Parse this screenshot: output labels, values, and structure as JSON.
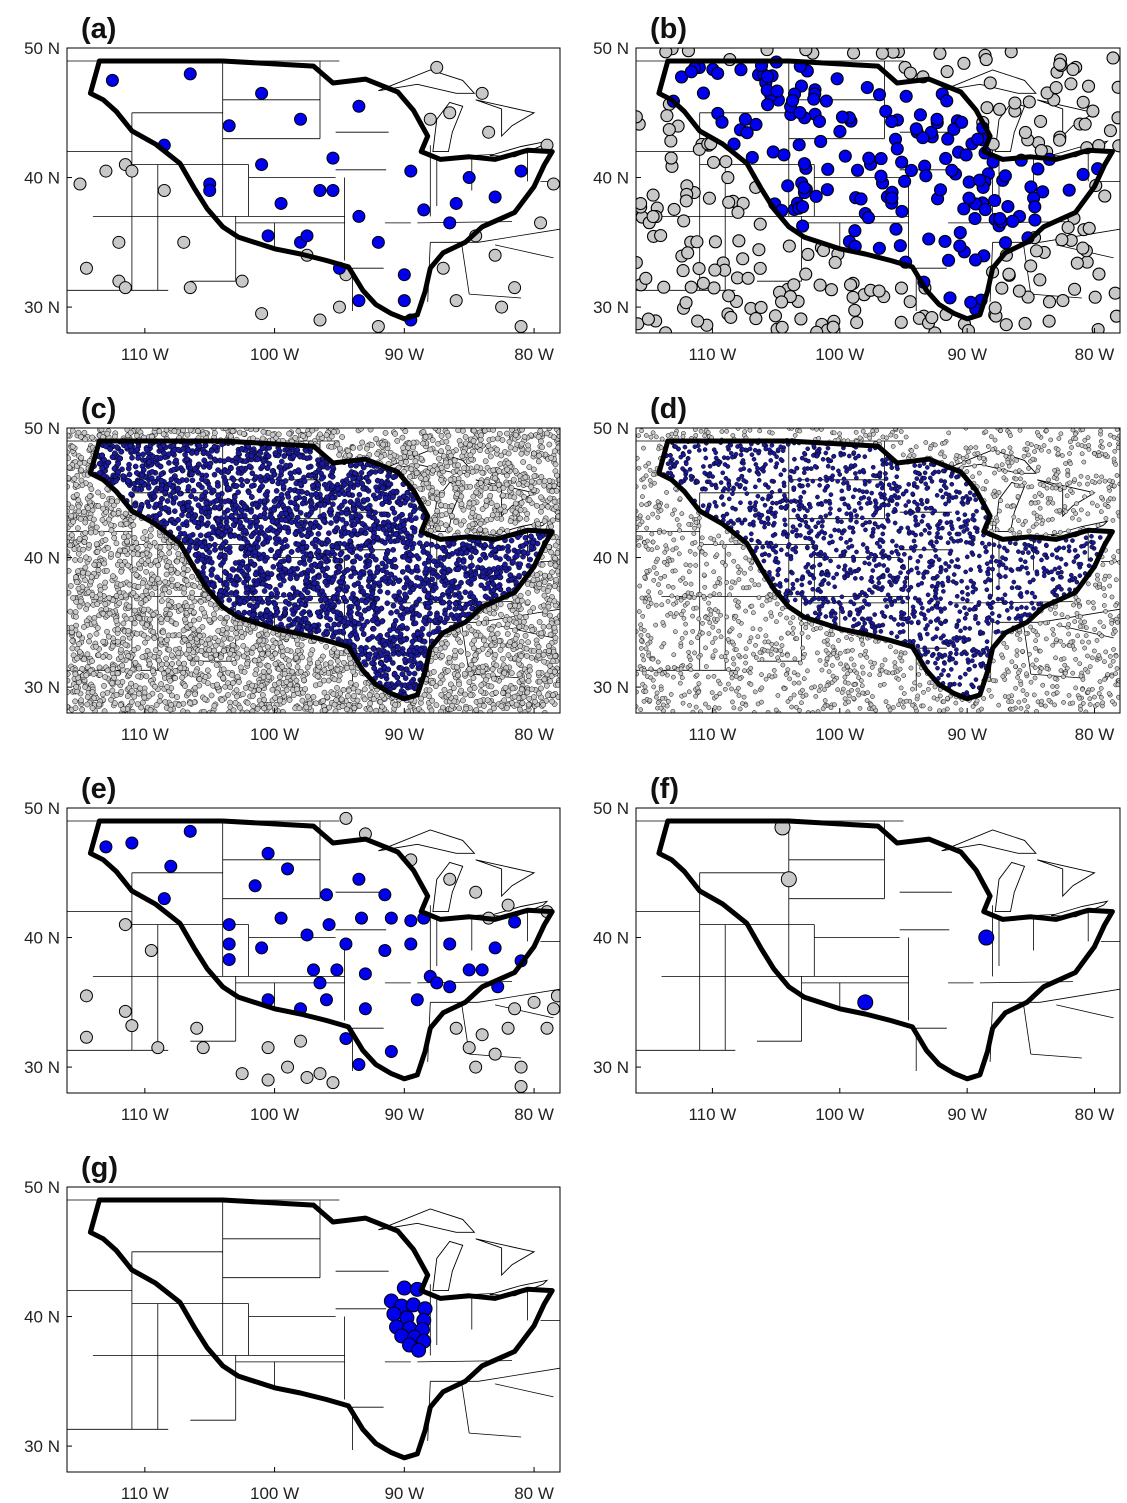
{
  "xlim": [
    -116,
    -78
  ],
  "ylim": [
    28,
    50
  ],
  "xticks": [
    {
      "value": -110,
      "label": "110 W"
    },
    {
      "value": -100,
      "label": "100 W"
    },
    {
      "value": -90,
      "label": "90 W"
    },
    {
      "value": -80,
      "label": "80 W"
    }
  ],
  "yticks": [
    {
      "value": 30,
      "label": "30 N"
    },
    {
      "value": 40,
      "label": "40 N"
    },
    {
      "value": 50,
      "label": "50 N"
    }
  ],
  "panels": [
    {
      "label": "(a)",
      "blue": [
        [
          -112.5,
          47.5
        ],
        [
          -106.5,
          48
        ],
        [
          -108.5,
          42.5
        ],
        [
          -105,
          39.5
        ],
        [
          -105,
          39
        ],
        [
          -103.5,
          44
        ],
        [
          -101,
          46.5
        ],
        [
          -101,
          41
        ],
        [
          -99.5,
          38
        ],
        [
          -98,
          44.5
        ],
        [
          -95.5,
          41.5
        ],
        [
          -96.5,
          39
        ],
        [
          -95.5,
          39
        ],
        [
          -93.5,
          45.5
        ],
        [
          -93.5,
          37
        ],
        [
          -92,
          35
        ],
        [
          -89.5,
          40.5
        ],
        [
          -88.5,
          37.5
        ],
        [
          -86.5,
          36.5
        ],
        [
          -86,
          38
        ],
        [
          -85,
          40
        ],
        [
          -83,
          38.5
        ],
        [
          -81,
          40.5
        ],
        [
          -100.5,
          35.5
        ],
        [
          -98,
          35
        ],
        [
          -97.5,
          35.5
        ],
        [
          -95,
          33
        ],
        [
          -93.5,
          30.5
        ],
        [
          -90,
          32.5
        ],
        [
          -90,
          30.5
        ],
        [
          -89.5,
          29
        ]
      ],
      "gray": [
        [
          -115,
          39.5
        ],
        [
          -113,
          40.5
        ],
        [
          -111.5,
          41
        ],
        [
          -111,
          40.5
        ],
        [
          -108.5,
          39
        ],
        [
          -112,
          35
        ],
        [
          -112,
          32
        ],
        [
          -111.5,
          31.5
        ],
        [
          -107,
          35
        ],
        [
          -106.5,
          31.5
        ],
        [
          -102.5,
          32
        ],
        [
          -101,
          29.5
        ],
        [
          -97.5,
          34
        ],
        [
          -96.5,
          29
        ],
        [
          -95,
          30
        ],
        [
          -92,
          28.5
        ],
        [
          -87,
          33
        ],
        [
          -86,
          30.5
        ],
        [
          -84.5,
          35.5
        ],
        [
          -83,
          34
        ],
        [
          -81.5,
          31.5
        ],
        [
          -82.5,
          30
        ],
        [
          -81,
          28.5
        ],
        [
          -79.5,
          36.5
        ],
        [
          -78.5,
          39.5
        ],
        [
          -79,
          42.5
        ],
        [
          -88,
          44.5
        ],
        [
          -86.5,
          45
        ],
        [
          -84,
          46.5
        ],
        [
          -83.5,
          43.5
        ],
        [
          -87.5,
          48.5
        ],
        [
          -94.5,
          32.5
        ],
        [
          -114.5,
          33
        ]
      ]
    },
    {
      "label": "(b)"
    },
    {
      "label": "(c)"
    },
    {
      "label": "(d)"
    },
    {
      "label": "(e)",
      "blue": [
        [
          -113,
          47
        ],
        [
          -111,
          47.3
        ],
        [
          -108,
          45.5
        ],
        [
          -106.5,
          48.2
        ],
        [
          -108.5,
          43
        ],
        [
          -103.5,
          41
        ],
        [
          -103.5,
          39.5
        ],
        [
          -103.5,
          38.3
        ],
        [
          -101.5,
          44
        ],
        [
          -100.5,
          46.5
        ],
        [
          -99,
          45.3
        ],
        [
          -101,
          39.2
        ],
        [
          -99.5,
          41.5
        ],
        [
          -97.5,
          40.2
        ],
        [
          -96,
          43.3
        ],
        [
          -95.8,
          41
        ],
        [
          -97,
          37.5
        ],
        [
          -96.5,
          36.5
        ],
        [
          -96,
          35.2
        ],
        [
          -95.2,
          37.5
        ],
        [
          -94.5,
          39.5
        ],
        [
          -93.5,
          44.5
        ],
        [
          -93.3,
          41.5
        ],
        [
          -93,
          37.2
        ],
        [
          -91.5,
          43.3
        ],
        [
          -91.5,
          39
        ],
        [
          -91,
          41.5
        ],
        [
          -89.5,
          41.3
        ],
        [
          -89.5,
          39.5
        ],
        [
          -88.5,
          41.5
        ],
        [
          -88,
          37
        ],
        [
          -87.5,
          36.5
        ],
        [
          -86.5,
          36.2
        ],
        [
          -86.5,
          39.5
        ],
        [
          -85,
          37.5
        ],
        [
          -84,
          37.5
        ],
        [
          -83,
          39.2
        ],
        [
          -81.5,
          41.2
        ],
        [
          -81,
          38.2
        ],
        [
          -82.8,
          36.2
        ],
        [
          -100.5,
          35.2
        ],
        [
          -98,
          34.5
        ],
        [
          -93,
          34.5
        ],
        [
          -94.5,
          32.2
        ],
        [
          -91,
          31.2
        ],
        [
          -93.5,
          30.2
        ],
        [
          -89,
          35.2
        ]
      ],
      "gray": [
        [
          -114.5,
          35.5
        ],
        [
          -111.5,
          34.3
        ],
        [
          -111,
          33.2
        ],
        [
          -109.5,
          39
        ],
        [
          -111.5,
          41
        ],
        [
          -114.5,
          32.3
        ],
        [
          -109,
          31.5
        ],
        [
          -106,
          33
        ],
        [
          -105.5,
          31.5
        ],
        [
          -102.5,
          29.5
        ],
        [
          -100.5,
          29
        ],
        [
          -99,
          30
        ],
        [
          -98,
          32
        ],
        [
          -97.5,
          29.2
        ],
        [
          -96.5,
          29.5
        ],
        [
          -95.5,
          28.8
        ],
        [
          -100.5,
          31.5
        ],
        [
          -86,
          33
        ],
        [
          -85,
          31.5
        ],
        [
          -84.5,
          30
        ],
        [
          -84,
          32.5
        ],
        [
          -83,
          31
        ],
        [
          -82,
          33
        ],
        [
          -81.5,
          34.5
        ],
        [
          -81,
          30
        ],
        [
          -80,
          35
        ],
        [
          -78.5,
          34.5
        ],
        [
          -79,
          33
        ],
        [
          -81,
          28.5
        ],
        [
          -78.2,
          35.5
        ],
        [
          -86.5,
          44.5
        ],
        [
          -84.5,
          43.5
        ],
        [
          -83.5,
          41.5
        ],
        [
          -82,
          42.5
        ],
        [
          -79,
          42
        ],
        [
          -93,
          48
        ],
        [
          -89.5,
          46
        ],
        [
          -94.5,
          49.2
        ]
      ]
    },
    {
      "label": "(f)",
      "blue": [
        [
          -88.5,
          40
        ],
        [
          -98,
          35
        ]
      ],
      "gray": [
        [
          -104.5,
          48.5
        ],
        [
          -104,
          44.5
        ]
      ]
    },
    {
      "label": "(g)",
      "blue": [
        [
          -90,
          42.2
        ],
        [
          -89,
          42.1
        ],
        [
          -91,
          41.2
        ],
        [
          -90.2,
          40.8
        ],
        [
          -89.3,
          40.9
        ],
        [
          -88.4,
          40.6
        ],
        [
          -90.8,
          40.2
        ],
        [
          -89.8,
          39.9
        ],
        [
          -88.5,
          39.7
        ],
        [
          -90.6,
          39.2
        ],
        [
          -89.6,
          39.1
        ],
        [
          -88.6,
          39
        ],
        [
          -90.2,
          38.5
        ],
        [
          -89.2,
          38.4
        ],
        [
          -88.5,
          38.1
        ],
        [
          -89.6,
          37.8
        ],
        [
          -88.9,
          37.4
        ]
      ]
    }
  ]
}
